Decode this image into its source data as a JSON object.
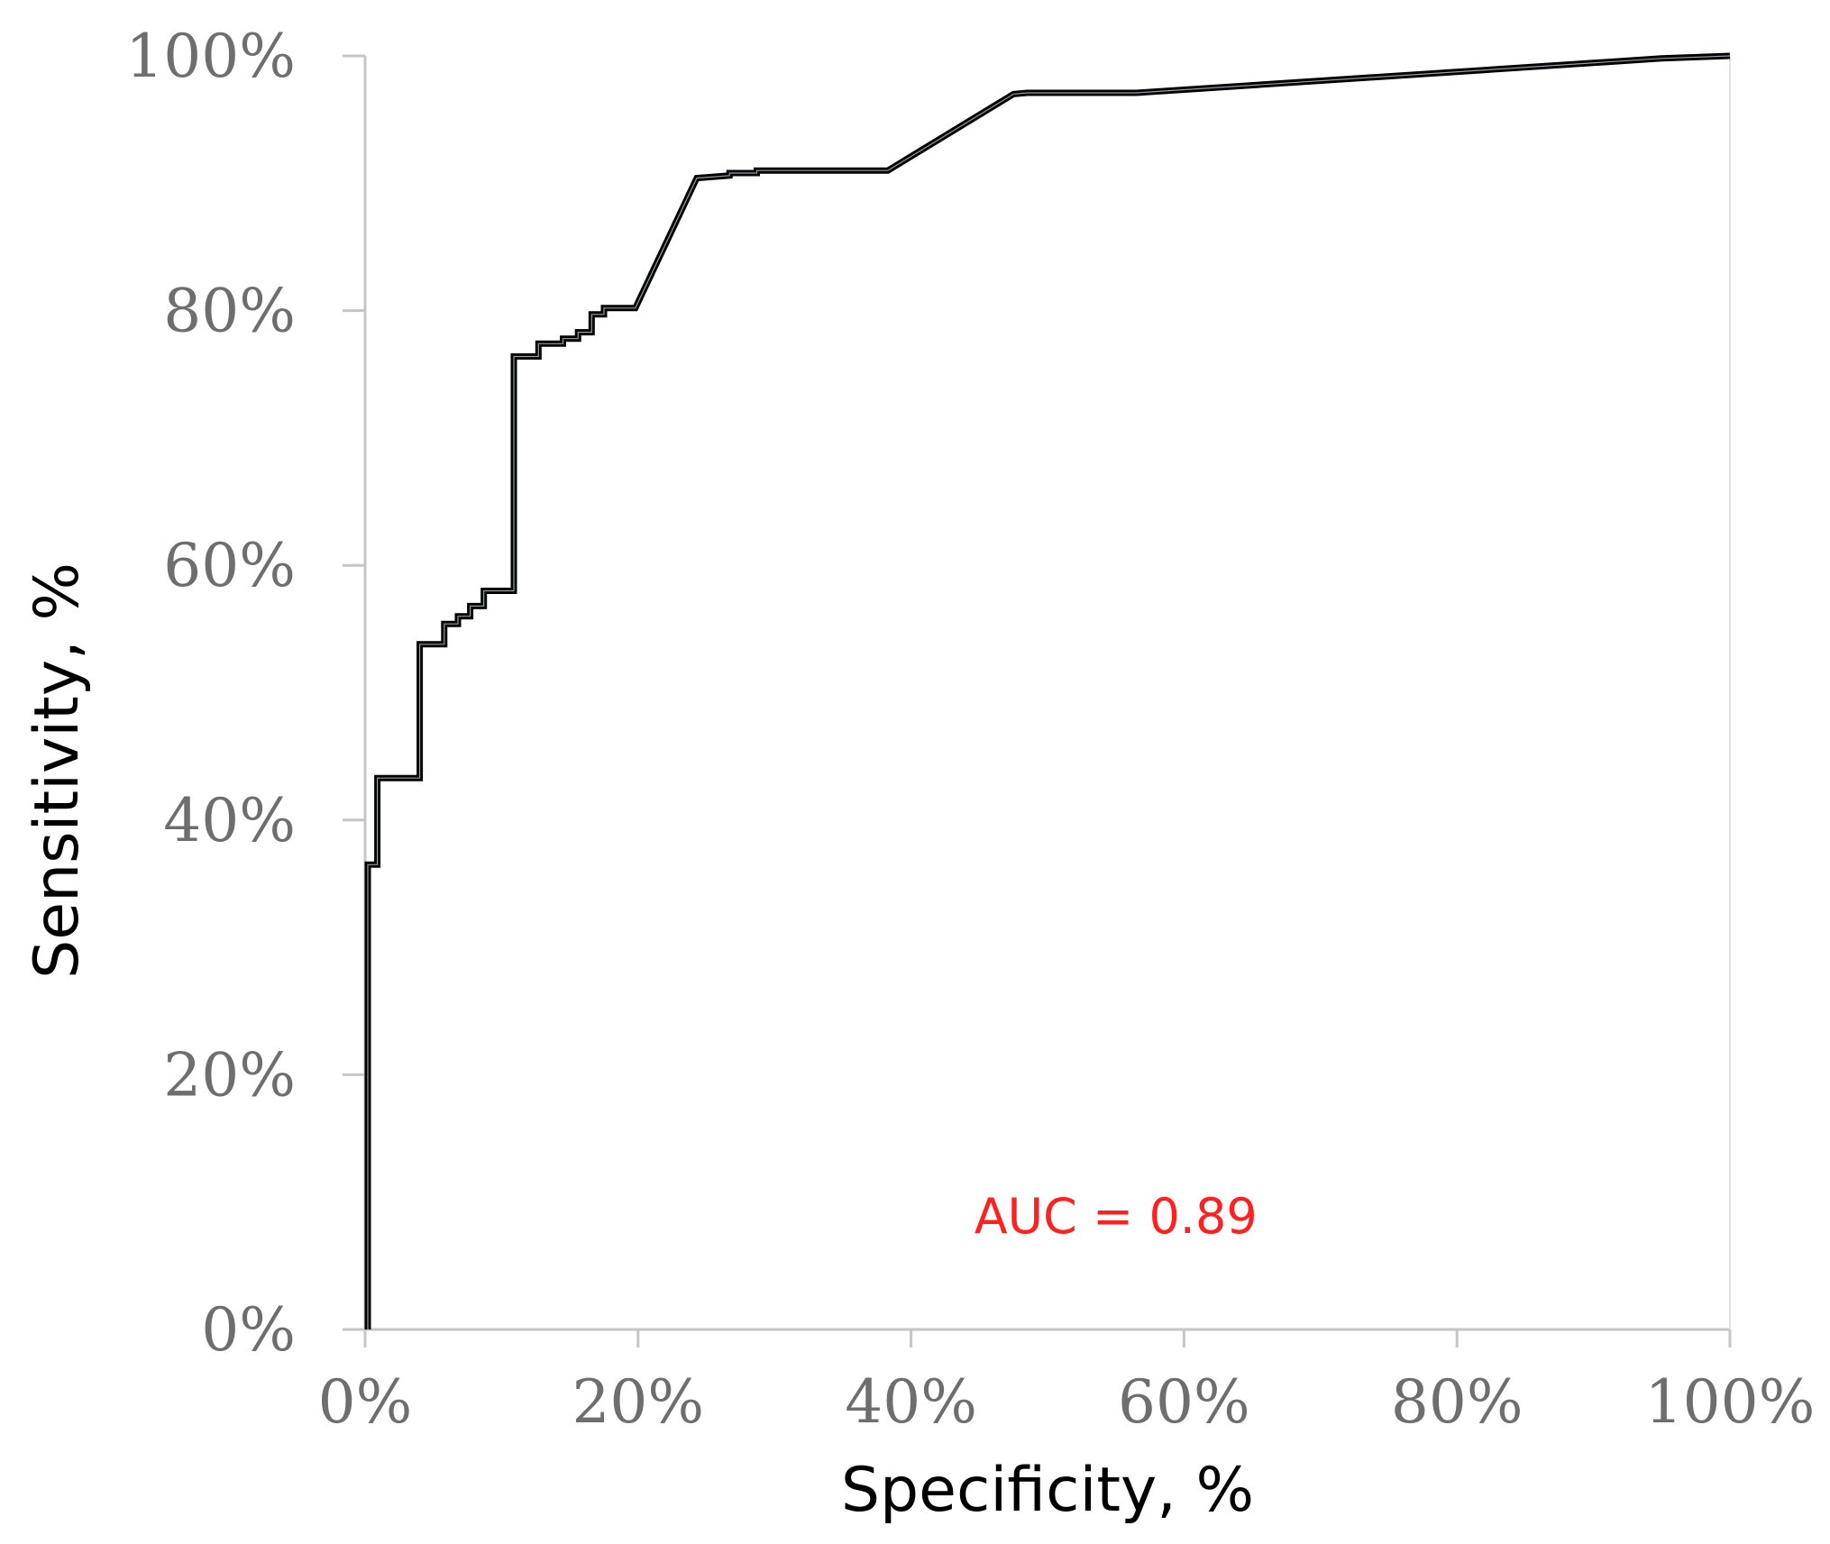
{
  "chart_data": {
    "type": "line",
    "xlabel": "Specificity, %",
    "ylabel": "Sensitivity, %",
    "xlim": [
      0,
      100
    ],
    "ylim": [
      0,
      100
    ],
    "x_ticks": [
      0,
      20,
      40,
      60,
      80,
      100
    ],
    "y_ticks": [
      0,
      20,
      40,
      60,
      80,
      100
    ],
    "x_tick_labels": [
      "0%",
      "20%",
      "40%",
      "60%",
      "80%",
      "100%"
    ],
    "y_tick_labels": [
      "0%",
      "20%",
      "40%",
      "60%",
      "80%",
      "100%"
    ],
    "grid": false,
    "line_color": "#000000",
    "annotation": {
      "text": "AUC = 0.89",
      "color": "#ff2020",
      "x": 55,
      "y": 9
    },
    "series": [
      {
        "x": [
          0.2,
          0.2,
          0.9,
          0.9,
          4.0,
          4.0,
          5.8,
          5.8,
          6.8,
          6.8,
          7.7,
          7.7,
          8.7,
          8.7,
          9.6,
          9.6,
          10.9,
          10.9,
          12.7,
          12.7,
          14.5,
          14.5,
          15.6,
          15.6,
          16.6,
          16.6,
          17.5,
          17.5,
          19.8,
          24.3,
          26.7,
          26.7,
          28.7,
          28.7,
          38.3,
          47.5,
          48.5,
          56.5,
          95.0,
          100
        ],
        "y": [
          0,
          36.5,
          36.5,
          43.3,
          43.3,
          53.8,
          53.8,
          55.4,
          55.4,
          56.0,
          56.0,
          56.8,
          56.8,
          58.0,
          58.0,
          58.0,
          58.0,
          76.4,
          76.4,
          77.4,
          77.4,
          77.8,
          77.8,
          78.3,
          78.3,
          79.7,
          79.7,
          80.2,
          80.2,
          90.4,
          90.6,
          90.8,
          90.8,
          91.0,
          91.0,
          97.0,
          97.1,
          97.1,
          99.8,
          100
        ]
      }
    ]
  }
}
